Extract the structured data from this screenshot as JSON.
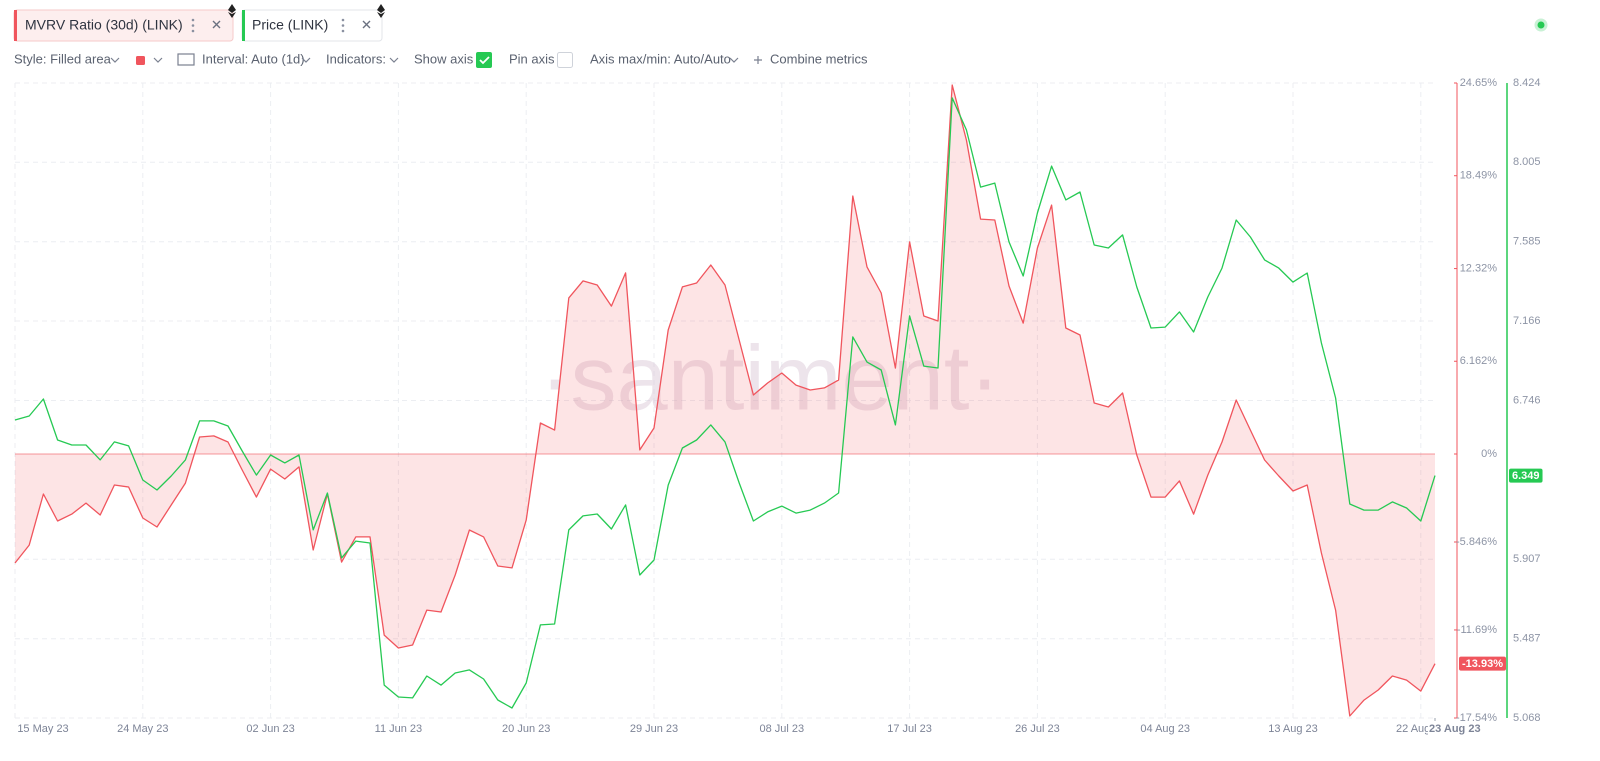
{
  "ui": {
    "toolbar": {
      "style": "Style: Filled area",
      "interval": "Interval: Auto (1d)",
      "indicators": "Indicators:",
      "show_axis": "Show axis",
      "pin_axis": "Pin axis",
      "axis_max_min": "Axis max/min: Auto/Auto",
      "combine": "Combine metrics"
    },
    "watermark": "·santiment·"
  },
  "chart_data": {
    "type": "line",
    "x": [
      "2023-05-15",
      "2023-05-16",
      "2023-05-17",
      "2023-05-18",
      "2023-05-19",
      "2023-05-20",
      "2023-05-21",
      "2023-05-22",
      "2023-05-23",
      "2023-05-24",
      "2023-05-25",
      "2023-05-26",
      "2023-05-27",
      "2023-05-28",
      "2023-05-29",
      "2023-05-30",
      "2023-05-31",
      "2023-06-01",
      "2023-06-02",
      "2023-06-03",
      "2023-06-04",
      "2023-06-05",
      "2023-06-06",
      "2023-06-07",
      "2023-06-08",
      "2023-06-09",
      "2023-06-10",
      "2023-06-11",
      "2023-06-12",
      "2023-06-13",
      "2023-06-14",
      "2023-06-15",
      "2023-06-16",
      "2023-06-17",
      "2023-06-18",
      "2023-06-19",
      "2023-06-20",
      "2023-06-21",
      "2023-06-22",
      "2023-06-23",
      "2023-06-24",
      "2023-06-25",
      "2023-06-26",
      "2023-06-27",
      "2023-06-28",
      "2023-06-29",
      "2023-06-30",
      "2023-07-01",
      "2023-07-02",
      "2023-07-03",
      "2023-07-04",
      "2023-07-05",
      "2023-07-06",
      "2023-07-07",
      "2023-07-08",
      "2023-07-09",
      "2023-07-10",
      "2023-07-11",
      "2023-07-12",
      "2023-07-13",
      "2023-07-14",
      "2023-07-15",
      "2023-07-16",
      "2023-07-17",
      "2023-07-18",
      "2023-07-19",
      "2023-07-20",
      "2023-07-21",
      "2023-07-22",
      "2023-07-23",
      "2023-07-24",
      "2023-07-25",
      "2023-07-26",
      "2023-07-27",
      "2023-07-28",
      "2023-07-29",
      "2023-07-30",
      "2023-07-31",
      "2023-08-01",
      "2023-08-02",
      "2023-08-03",
      "2023-08-04",
      "2023-08-05",
      "2023-08-06",
      "2023-08-07",
      "2023-08-08",
      "2023-08-09",
      "2023-08-10",
      "2023-08-11",
      "2023-08-12",
      "2023-08-13",
      "2023-08-14",
      "2023-08-15",
      "2023-08-16",
      "2023-08-17",
      "2023-08-18",
      "2023-08-19",
      "2023-08-20",
      "2023-08-21",
      "2023-08-22",
      "2023-08-23"
    ],
    "xlim": [
      "2023-05-15",
      "2023-08-23"
    ],
    "xticks": [
      {
        "value": "2023-05-15",
        "label": "15 May 23"
      },
      {
        "value": "2023-05-24",
        "label": "24 May 23"
      },
      {
        "value": "2023-06-02",
        "label": "02 Jun 23"
      },
      {
        "value": "2023-06-11",
        "label": "11 Jun 23"
      },
      {
        "value": "2023-06-20",
        "label": "20 Jun 23"
      },
      {
        "value": "2023-06-29",
        "label": "29 Jun 23"
      },
      {
        "value": "2023-07-08",
        "label": "08 Jul 23"
      },
      {
        "value": "2023-07-17",
        "label": "17 Jul 23"
      },
      {
        "value": "2023-07-26",
        "label": "26 Jul 23"
      },
      {
        "value": "2023-08-04",
        "label": "04 Aug 23"
      },
      {
        "value": "2023-08-13",
        "label": "13 Aug 23"
      },
      {
        "value": "2023-08-22",
        "label": "22 Aug 23"
      },
      {
        "value": "2023-08-23",
        "label": "23 Aug 23"
      }
    ],
    "ylim": [
      -17.54,
      24.65
    ],
    "yticks": [
      {
        "value": 24.65,
        "label": "24.65%"
      },
      {
        "value": 18.49,
        "label": "18.49%"
      },
      {
        "value": 12.32,
        "label": "12.32%"
      },
      {
        "value": 6.162,
        "label": "6.162%"
      },
      {
        "value": 0,
        "label": "0%"
      },
      {
        "value": -5.846,
        "label": "-5.846%"
      },
      {
        "value": -11.69,
        "label": "-11.69%"
      },
      {
        "value": -17.54,
        "label": "-17.54%"
      }
    ],
    "y2lim": [
      5.068,
      8.424
    ],
    "y2ticks": [
      8.424,
      8.005,
      7.585,
      7.166,
      6.746,
      5.907,
      5.487,
      5.068
    ],
    "grid": true,
    "series": [
      {
        "name": "MVRV Ratio (30d) (LINK)",
        "type": "area",
        "color": "#f0555d",
        "axis": "y",
        "values": [
          -7.24,
          -6.05,
          -2.66,
          -4.45,
          -3.99,
          -3.26,
          -4.05,
          -2.06,
          -2.19,
          -4.25,
          -4.85,
          -3.39,
          -1.93,
          1.13,
          1.2,
          0.8,
          -1.06,
          -2.86,
          -1,
          -1.66,
          -0.86,
          -6.38,
          -2.66,
          -7.18,
          -5.51,
          -5.51,
          -12.03,
          -12.89,
          -12.69,
          -10.37,
          -10.5,
          -8.04,
          -5.05,
          -5.51,
          -7.44,
          -7.57,
          -4.39,
          2.06,
          1.59,
          10.37,
          11.5,
          11.23,
          9.83,
          12.03,
          0.27,
          1.73,
          8.24,
          11.1,
          11.36,
          12.56,
          11.23,
          7.57,
          3.92,
          4.72,
          5.38,
          4.58,
          4.25,
          4.39,
          4.92,
          17.14,
          12.43,
          10.7,
          5.71,
          14.09,
          9.17,
          8.84,
          24.52,
          20.86,
          15.61,
          15.55,
          11.16,
          8.7,
          13.69,
          16.54,
          8.37,
          7.91,
          3.39,
          3.12,
          4.05,
          -0.07,
          -2.86,
          -2.86,
          -1.79,
          -3.99,
          -1.4,
          0.8,
          3.59,
          1.59,
          -0.4,
          -1.46,
          -2.46,
          -2.06,
          -6.58,
          -10.37,
          -17.41,
          -16.35,
          -15.68,
          -14.75,
          -15.02,
          -15.75,
          -13.93
        ],
        "value_labels": [
          null,
          null,
          null,
          null,
          null,
          null,
          null,
          null,
          null,
          null,
          null,
          null,
          null,
          null,
          null,
          null,
          null,
          null,
          null,
          null,
          null,
          null,
          null,
          null,
          null,
          null,
          null,
          null,
          null,
          null,
          null,
          null,
          null,
          null,
          null,
          null,
          null,
          null,
          null,
          null,
          null,
          null,
          null,
          null,
          null,
          null,
          null,
          null,
          null,
          null,
          null,
          null,
          null,
          null,
          null,
          null,
          null,
          null,
          null,
          null,
          null,
          null,
          null,
          null,
          null,
          null,
          null,
          null,
          null,
          null,
          null,
          null,
          null,
          null,
          null,
          null,
          null,
          null,
          null,
          null,
          null,
          null,
          null,
          null,
          null,
          null,
          null,
          null,
          null,
          null,
          null,
          null,
          null,
          null,
          null,
          null,
          null,
          null,
          null,
          null,
          "-13.93%"
        ]
      },
      {
        "name": "Price (LINK)",
        "type": "line",
        "color": "#26c953",
        "axis": "y2",
        "values": [
          6.643,
          6.664,
          6.754,
          6.537,
          6.511,
          6.511,
          6.432,
          6.527,
          6.506,
          6.326,
          6.273,
          6.347,
          6.432,
          6.638,
          6.638,
          6.611,
          6.479,
          6.352,
          6.458,
          6.416,
          6.458,
          6.062,
          6.257,
          5.914,
          6.003,
          5.993,
          5.242,
          5.179,
          5.174,
          5.29,
          5.242,
          5.306,
          5.322,
          5.274,
          5.163,
          5.121,
          5.253,
          5.56,
          5.565,
          6.062,
          6.136,
          6.146,
          6.067,
          6.194,
          5.824,
          5.903,
          6.299,
          6.495,
          6.537,
          6.617,
          6.527,
          6.31,
          6.109,
          6.157,
          6.188,
          6.151,
          6.167,
          6.204,
          6.257,
          7.082,
          6.949,
          6.907,
          6.617,
          7.193,
          6.928,
          6.918,
          8.345,
          8.176,
          7.874,
          7.895,
          7.584,
          7.404,
          7.737,
          7.985,
          7.806,
          7.848,
          7.568,
          7.552,
          7.621,
          7.346,
          7.129,
          7.134,
          7.214,
          7.108,
          7.293,
          7.446,
          7.7,
          7.61,
          7.489,
          7.446,
          7.372,
          7.42,
          7.05,
          6.759,
          6.199,
          6.167,
          6.167,
          6.21,
          6.178,
          6.109,
          6.349
        ]
      }
    ]
  }
}
